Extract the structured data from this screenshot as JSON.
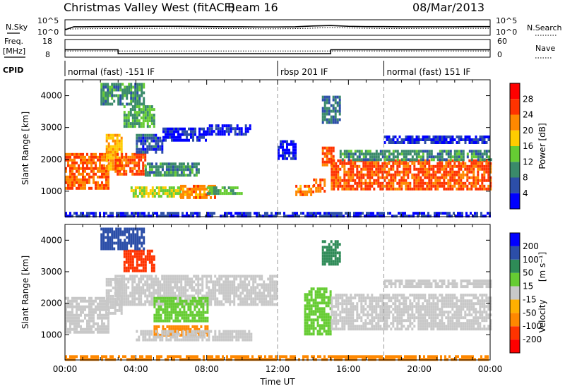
{
  "header": {
    "title": "Christmas Valley West (fitACF)",
    "beam": "Beam 16",
    "date": "08/Mar/2013"
  },
  "colors": {
    "ground_scatter": "#c8c8c8",
    "power_scale": [
      "#0000ff",
      "#2c4ea8",
      "#3a8a6a",
      "#66cc33",
      "#ffcc00",
      "#ff8800",
      "#ff3300",
      "#ff0000"
    ],
    "velocity_scale": [
      "#ff0000",
      "#ff3300",
      "#ff8800",
      "#ffb000",
      "#c8c8c8",
      "#66cc33",
      "#2e8b57",
      "#2c4ea8",
      "#0000ff"
    ]
  },
  "chart_data": [
    {
      "type": "line",
      "name": "noise-panel",
      "left_label": "N.Sky",
      "right_label": "N.Search",
      "left_ticks": [
        "10^5",
        "10^0"
      ],
      "right_ticks": [
        "10^5",
        "10^0"
      ],
      "series": [
        {
          "name": "N.Sky",
          "style": "solid",
          "x": [
            0,
            0.5,
            1,
            2,
            3,
            4,
            5,
            6,
            7,
            8,
            9,
            10,
            11,
            12,
            13,
            14,
            15,
            16,
            17,
            18,
            19,
            20,
            21,
            22,
            23,
            24
          ],
          "y": [
            0.35,
            0.55,
            0.55,
            0.56,
            0.56,
            0.57,
            0.58,
            0.58,
            0.57,
            0.56,
            0.55,
            0.55,
            0.54,
            0.54,
            0.55,
            0.6,
            0.63,
            0.58,
            0.56,
            0.56,
            0.55,
            0.55,
            0.55,
            0.55,
            0.56,
            0.56
          ]
        },
        {
          "name": "N.Search",
          "style": "dotted",
          "x": [
            0,
            1,
            2,
            3,
            4,
            5,
            6,
            7,
            8,
            9,
            10,
            11,
            12,
            13,
            14,
            15,
            16,
            17,
            18,
            19,
            20,
            21,
            22,
            23,
            24
          ],
          "y": [
            0.4,
            0.42,
            0.43,
            0.44,
            0.45,
            0.45,
            0.46,
            0.45,
            0.44,
            0.43,
            0.43,
            0.42,
            0.42,
            0.43,
            0.46,
            0.5,
            0.47,
            0.45,
            0.44,
            0.44,
            0.44,
            0.44,
            0.44,
            0.45,
            0.45
          ]
        }
      ]
    },
    {
      "type": "line",
      "name": "frequency-panel",
      "left_label_1": "Freq.",
      "left_label_2": "[MHz]",
      "right_label": "Nave",
      "left_ticks": [
        "18",
        "8"
      ],
      "right_ticks": [
        "60",
        "0"
      ],
      "series": [
        {
          "name": "Freq.",
          "style": "solid",
          "x": [
            0,
            3.0,
            3.0,
            15.0,
            15.0,
            24
          ],
          "y": [
            12.2,
            12.2,
            10.0,
            10.0,
            12.2,
            12.2
          ]
        },
        {
          "name": "Nave",
          "style": "dotted",
          "x": [
            0,
            24
          ],
          "y": [
            21,
            21
          ]
        }
      ]
    },
    {
      "type": "table",
      "name": "cpid-panel",
      "label": "CPID",
      "segments": [
        {
          "start": 0,
          "end": 12,
          "label": "normal (fast) -151 IF"
        },
        {
          "start": 12,
          "end": 18,
          "label": "rbsp 201 IF"
        },
        {
          "start": 18,
          "end": 24,
          "label": "normal (fast) 151 IF"
        }
      ]
    },
    {
      "type": "heatmap",
      "name": "power-panel",
      "ylabel": "Slant Range [km]",
      "ylim": [
        200,
        4500
      ],
      "xlim": [
        0,
        24
      ],
      "yticks": [
        "1000",
        "2000",
        "3000",
        "4000"
      ],
      "colorbar_label": "Power [dB]",
      "colorbar_ticks": [
        "4",
        "8",
        "12",
        "16",
        "20",
        "24",
        "28"
      ],
      "regions": [
        {
          "t0": 0.0,
          "t1": 2.5,
          "r0": 1100,
          "r1": 2200,
          "v": 26
        },
        {
          "t0": 2.3,
          "t1": 3.2,
          "r0": 1700,
          "r1": 2800,
          "v": 22
        },
        {
          "t0": 2.8,
          "t1": 4.5,
          "r0": 1500,
          "r1": 2200,
          "v": 27
        },
        {
          "t0": 4.0,
          "t1": 5.5,
          "r0": 2200,
          "r1": 2800,
          "v": 8
        },
        {
          "t0": 5.5,
          "t1": 8.0,
          "r0": 2600,
          "r1": 3000,
          "v": 5
        },
        {
          "t0": 8.0,
          "t1": 10.5,
          "r0": 2800,
          "r1": 3100,
          "v": 5
        },
        {
          "t0": 2.0,
          "t1": 4.5,
          "r0": 3700,
          "r1": 4400,
          "v": 12
        },
        {
          "t0": 3.3,
          "t1": 5.0,
          "r0": 3000,
          "r1": 3700,
          "v": 14
        },
        {
          "t0": 4.5,
          "t1": 7.5,
          "r0": 1500,
          "r1": 1900,
          "v": 12
        },
        {
          "t0": 3.7,
          "t1": 6.5,
          "r0": 850,
          "r1": 1150,
          "v": 18
        },
        {
          "t0": 6.5,
          "t1": 8.5,
          "r0": 800,
          "r1": 1200,
          "v": 24
        },
        {
          "t0": 8.0,
          "t1": 10.0,
          "r0": 950,
          "r1": 1150,
          "v": 14
        },
        {
          "t0": 12.0,
          "t1": 13.0,
          "r0": 2000,
          "r1": 2600,
          "v": 5
        },
        {
          "t0": 13.0,
          "t1": 14.0,
          "r0": 850,
          "r1": 1200,
          "v": 24
        },
        {
          "t0": 14.0,
          "t1": 14.7,
          "r0": 1000,
          "r1": 1400,
          "v": 26
        },
        {
          "t0": 14.5,
          "t1": 15.2,
          "r0": 1800,
          "r1": 2400,
          "v": 27
        },
        {
          "t0": 15.0,
          "t1": 24.0,
          "r0": 1100,
          "r1": 2000,
          "v": 27
        },
        {
          "t0": 15.5,
          "t1": 24.0,
          "r0": 2000,
          "r1": 2300,
          "v": 12
        },
        {
          "t0": 18.0,
          "t1": 24.0,
          "r0": 2500,
          "r1": 2750,
          "v": 6
        },
        {
          "t0": 14.5,
          "t1": 15.5,
          "r0": 3200,
          "r1": 4000,
          "v": 10
        },
        {
          "t0": 0.0,
          "t1": 24.0,
          "r0": 200,
          "r1": 350,
          "v": 6
        }
      ]
    },
    {
      "type": "heatmap",
      "name": "velocity-panel",
      "ylabel": "Slant Range [km]",
      "ylim": [
        200,
        4500
      ],
      "xlim": [
        0,
        24
      ],
      "yticks": [
        "1000",
        "2000",
        "3000",
        "4000"
      ],
      "xticks": [
        "00:00",
        "04:00",
        "08:00",
        "12:00",
        "16:00",
        "20:00",
        "00:00"
      ],
      "xlabel": "Time UT",
      "colorbar_label_main": "Velocity",
      "colorbar_label_unit": "[m s⁻¹]",
      "colorbar_ticks": [
        "200",
        "100",
        "50",
        "15",
        "-15",
        "-50",
        "-100",
        "-200"
      ],
      "regions": [
        {
          "t0": 0.0,
          "t1": 2.5,
          "r0": 1100,
          "r1": 2200,
          "v": 0,
          "gs": true
        },
        {
          "t0": 2.3,
          "t1": 3.2,
          "r0": 1700,
          "r1": 2800,
          "v": 0,
          "gs": true
        },
        {
          "t0": 2.8,
          "t1": 12.0,
          "r0": 2000,
          "r1": 2900,
          "v": 0,
          "gs": true
        },
        {
          "t0": 3.3,
          "t1": 5.0,
          "r0": 3000,
          "r1": 3700,
          "v": -150
        },
        {
          "t0": 2.0,
          "t1": 4.5,
          "r0": 3700,
          "r1": 4400,
          "v": 150
        },
        {
          "t0": 5.0,
          "t1": 8.0,
          "r0": 1400,
          "r1": 2200,
          "v": 40
        },
        {
          "t0": 5.0,
          "t1": 8.0,
          "r0": 1000,
          "r1": 1300,
          "v": -60
        },
        {
          "t0": 4.0,
          "t1": 10.5,
          "r0": 800,
          "r1": 1150,
          "v": 0,
          "gs": true
        },
        {
          "t0": 13.5,
          "t1": 15.0,
          "r0": 1000,
          "r1": 2500,
          "v": 30
        },
        {
          "t0": 14.5,
          "t1": 15.5,
          "r0": 3200,
          "r1": 4000,
          "v": 80
        },
        {
          "t0": 15.0,
          "t1": 24.0,
          "r0": 1200,
          "r1": 2300,
          "v": 0,
          "gs": true
        },
        {
          "t0": 18.0,
          "t1": 24.0,
          "r0": 2500,
          "r1": 2750,
          "v": 0,
          "gs": true
        },
        {
          "t0": 0.0,
          "t1": 24.0,
          "r0": 200,
          "r1": 350,
          "v": -60
        }
      ]
    }
  ]
}
